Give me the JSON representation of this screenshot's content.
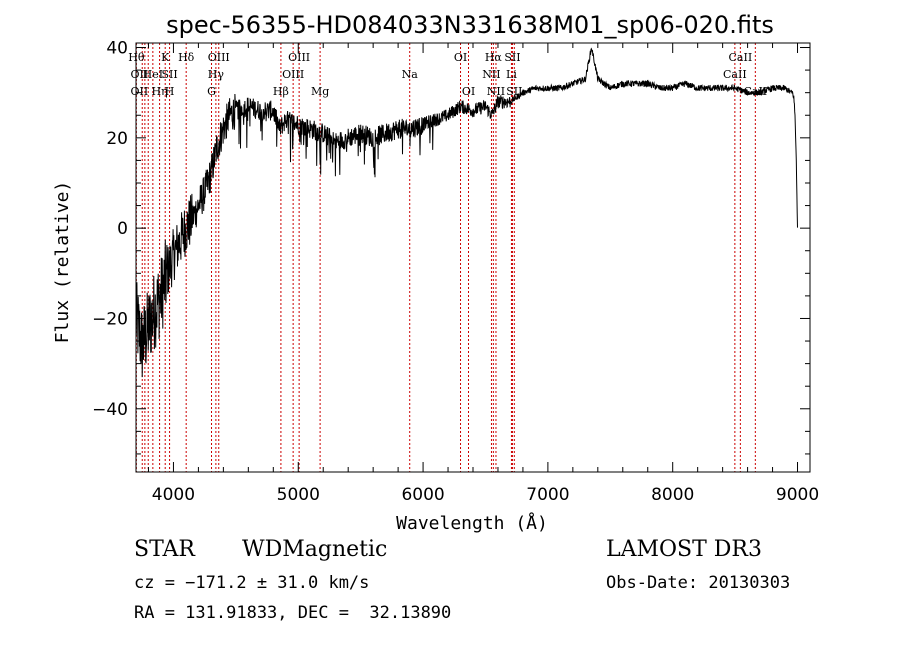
{
  "chart_data": {
    "type": "line",
    "title": "spec-56355-HD084033N331638M01_sp06-020.fits",
    "xlabel": "Wavelength (Å)",
    "ylabel": "Flux (relative)",
    "xlim": [
      3700,
      9100
    ],
    "ylim": [
      -54,
      41
    ],
    "xticks": [
      4000,
      5000,
      6000,
      7000,
      8000,
      9000
    ],
    "yticks": [
      -40,
      -20,
      0,
      20,
      40
    ],
    "grid": false,
    "line_color": "#000000",
    "marker_color": "#cc0000",
    "spectrum_anchors": {
      "x": [
        3700,
        3750,
        3800,
        3850,
        3900,
        3950,
        4000,
        4050,
        4100,
        4150,
        4200,
        4250,
        4300,
        4350,
        4400,
        4450,
        4500,
        4600,
        4700,
        4800,
        4850,
        4900,
        5000,
        5100,
        5200,
        5300,
        5400,
        5500,
        5600,
        5700,
        5800,
        5900,
        6000,
        6100,
        6200,
        6300,
        6400,
        6500,
        6550,
        6600,
        6700,
        6800,
        6900,
        7000,
        7100,
        7200,
        7300,
        7350,
        7400,
        7500,
        7600,
        7700,
        7800,
        7900,
        8000,
        8100,
        8200,
        8300,
        8400,
        8500,
        8600,
        8700,
        8800,
        8850,
        8900,
        8950,
        8960,
        8970,
        8980,
        8990,
        9000
      ],
      "y": [
        -20,
        -26,
        -22,
        -18,
        -15,
        -10,
        -6,
        -3,
        0,
        2,
        5,
        8,
        12,
        18,
        22,
        25,
        26,
        27,
        26,
        26,
        22,
        24,
        23,
        22,
        21,
        19,
        20,
        21,
        20,
        21,
        22,
        22,
        23,
        24,
        25,
        27,
        26,
        27,
        25,
        28,
        28,
        30,
        31,
        31,
        31,
        32,
        33,
        40,
        33,
        31,
        32,
        32,
        32,
        31,
        31,
        32,
        31,
        31,
        31,
        31,
        30,
        30,
        31,
        31,
        31,
        30,
        30,
        29,
        25,
        15,
        0
      ]
    },
    "lines": [
      {
        "x": 3703,
        "labels": [
          "Hθ",
          "OII",
          "OII"
        ]
      },
      {
        "x": 3750,
        "labels": []
      },
      {
        "x": 3771,
        "labels": []
      },
      {
        "x": 3798,
        "labels": []
      },
      {
        "x": 3835,
        "labels": [
          "HeI"
        ]
      },
      {
        "x": 3889,
        "labels": [
          "Hη"
        ]
      },
      {
        "x": 3934,
        "labels": [
          "K"
        ]
      },
      {
        "x": 3969,
        "labels": [
          "SII",
          "H"
        ]
      },
      {
        "x": 4102,
        "labels": [
          "Hδ"
        ]
      },
      {
        "x": 4305,
        "labels": [
          "G"
        ]
      },
      {
        "x": 4340,
        "labels": [
          "Hγ"
        ]
      },
      {
        "x": 4363,
        "labels": [
          "OIII"
        ]
      },
      {
        "x": 4861,
        "labels": [
          "Hβ"
        ]
      },
      {
        "x": 4959,
        "labels": [
          "OIII"
        ]
      },
      {
        "x": 5007,
        "labels": [
          "OIII"
        ]
      },
      {
        "x": 5175,
        "labels": [
          "Mg"
        ]
      },
      {
        "x": 5893,
        "labels": [
          "Na"
        ]
      },
      {
        "x": 6300,
        "labels": [
          "OI"
        ]
      },
      {
        "x": 6364,
        "labels": [
          "OI"
        ]
      },
      {
        "x": 6548,
        "labels": [
          "NII"
        ]
      },
      {
        "x": 6563,
        "labels": [
          "Hα"
        ]
      },
      {
        "x": 6584,
        "labels": [
          "NII"
        ]
      },
      {
        "x": 6708,
        "labels": [
          "Li"
        ]
      },
      {
        "x": 6716,
        "labels": [
          "SII",
          "SII"
        ]
      },
      {
        "x": 6731,
        "labels": [
          "SII"
        ]
      },
      {
        "x": 8498,
        "labels": [
          "CaII"
        ]
      },
      {
        "x": 8542,
        "labels": [
          "CaII"
        ]
      },
      {
        "x": 8662,
        "labels": [
          "CaII"
        ]
      }
    ],
    "line_labels_raw": {
      "row1": [
        "Hθ",
        "K",
        "Hδ",
        "OIII",
        "OIII",
        "OI",
        "Hα",
        "SII",
        "CaII"
      ],
      "row2": [
        "OII",
        "HeI",
        "SII",
        "Hγ",
        "OIII",
        "Na",
        "NII",
        "Li",
        "CaII"
      ],
      "row3": [
        "OII",
        "Hη",
        "H",
        "G",
        "Hβ",
        "Mg",
        "OI",
        "NII",
        "SII",
        "CaII"
      ]
    }
  },
  "info": {
    "class": "STAR",
    "subclass": "WDMagnetic",
    "survey": "LAMOST DR3",
    "cz": "cz = −171.2 ± 31.0 km/s",
    "obs_date": "Obs-Date: 20130303",
    "radec": "RA = 131.91833, DEC =  32.13890"
  }
}
